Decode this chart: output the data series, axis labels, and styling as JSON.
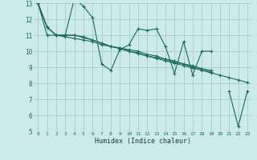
{
  "xlabel": "Humidex (Indice chaleur)",
  "bg_color": "#cceaea",
  "grid_color": "#aacccc",
  "line_color": "#1a6b5a",
  "xlim": [
    -0.5,
    23.5
  ],
  "ylim": [
    5,
    13
  ],
  "yticks": [
    5,
    6,
    7,
    8,
    9,
    10,
    11,
    12,
    13
  ],
  "xticks": [
    0,
    1,
    2,
    3,
    4,
    5,
    6,
    7,
    8,
    9,
    10,
    11,
    12,
    13,
    14,
    15,
    16,
    17,
    18,
    19,
    20,
    21,
    22,
    23
  ],
  "series": [
    {
      "x": [
        0,
        1,
        2,
        3,
        4,
        5,
        6,
        7,
        8,
        9,
        10,
        11,
        12,
        13,
        14,
        15,
        16,
        17,
        18,
        19
      ],
      "y": [
        13.0,
        11.5,
        11.0,
        11.0,
        13.3,
        12.8,
        12.1,
        9.2,
        8.8,
        10.1,
        10.4,
        11.4,
        11.3,
        11.4,
        10.3,
        8.6,
        10.6,
        8.5,
        10.0,
        10.0
      ]
    },
    {
      "x": [
        0,
        1,
        2,
        3,
        4,
        5,
        6,
        7,
        8,
        9,
        10,
        11,
        12,
        13,
        14,
        15,
        16,
        17,
        18,
        19
      ],
      "y": [
        13.0,
        11.5,
        11.0,
        11.0,
        11.0,
        10.9,
        10.7,
        10.5,
        10.3,
        10.2,
        10.1,
        10.0,
        9.8,
        9.7,
        9.5,
        9.4,
        9.2,
        9.1,
        8.9,
        8.8
      ]
    },
    {
      "x": [
        0,
        1,
        2,
        3,
        4,
        5,
        6,
        7,
        8,
        9,
        10,
        11,
        12,
        13,
        14,
        15,
        16,
        17,
        18,
        19
      ],
      "y": [
        13.0,
        11.0,
        11.0,
        10.9,
        10.8,
        10.7,
        10.6,
        10.4,
        10.3,
        10.2,
        10.0,
        9.9,
        9.7,
        9.6,
        9.5,
        9.3,
        9.2,
        9.0,
        8.9,
        8.7
      ]
    },
    {
      "x": [
        0,
        1,
        2,
        3,
        4,
        5,
        6,
        7,
        8,
        9,
        10,
        11,
        12,
        13,
        14,
        15,
        16,
        17,
        18,
        19,
        20,
        21,
        22,
        23
      ],
      "y": [
        13.0,
        11.5,
        11.0,
        11.0,
        11.0,
        10.85,
        10.7,
        10.5,
        10.3,
        10.15,
        10.0,
        9.85,
        9.7,
        9.55,
        9.4,
        9.25,
        9.1,
        8.95,
        8.8,
        8.65,
        8.5,
        8.35,
        8.2,
        8.05
      ]
    },
    {
      "x": [
        21,
        22,
        23
      ],
      "y": [
        7.5,
        5.3,
        7.5
      ]
    }
  ]
}
